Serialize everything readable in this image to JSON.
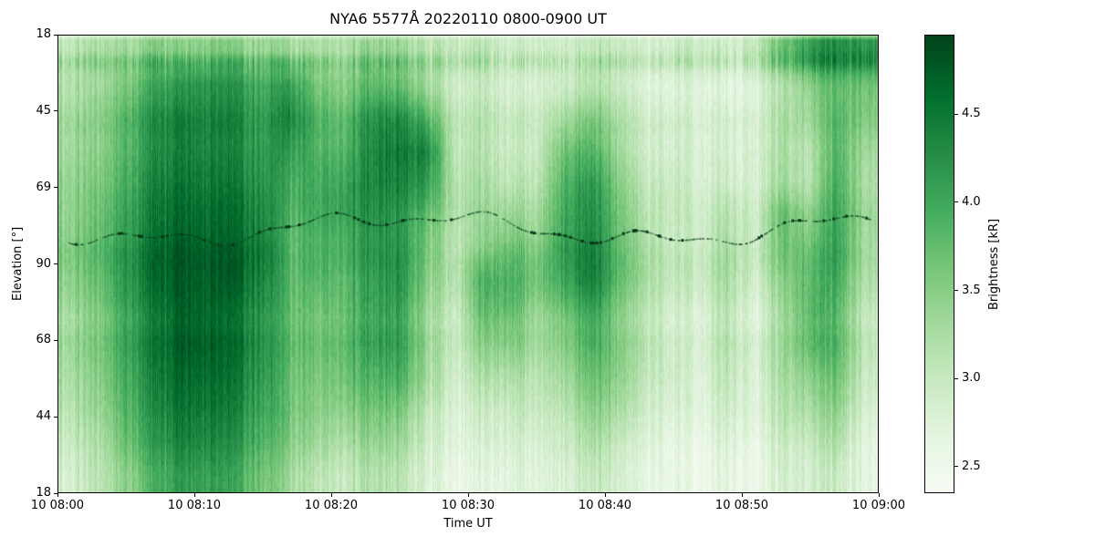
{
  "figure": {
    "background": "#ffffff"
  },
  "colorbar": {
    "label": "Brightness [kR]",
    "ticks": [
      "2.5",
      "3.0",
      "3.5",
      "4.0",
      "4.5"
    ],
    "tick_values": [
      2.5,
      3.0,
      3.5,
      4.0,
      4.5
    ],
    "vmin": 2.35,
    "vmax": 4.95,
    "colormap": {
      "name": "Greens",
      "stops": [
        [
          0.0,
          "#f7fcf5"
        ],
        [
          0.125,
          "#e5f5e0"
        ],
        [
          0.25,
          "#c7e9c0"
        ],
        [
          0.375,
          "#a1d99b"
        ],
        [
          0.5,
          "#74c476"
        ],
        [
          0.625,
          "#41ab5d"
        ],
        [
          0.75,
          "#238b45"
        ],
        [
          0.875,
          "#006d2c"
        ],
        [
          1.0,
          "#00441b"
        ]
      ]
    }
  },
  "chart_data": {
    "type": "heatmap",
    "title": "NYA6 5577Å 20220110 0800-0900 UT",
    "xlabel": "Time UT",
    "ylabel": "Elevation [°]",
    "x_tick_labels": [
      "10 08:00",
      "10 08:10",
      "10 08:20",
      "10 08:30",
      "10 08:40",
      "10 08:50",
      "10 09:00"
    ],
    "y_tick_labels": [
      "18",
      "45",
      "69",
      "90",
      "68",
      "44",
      "18"
    ],
    "value_label": "Brightness [kR]",
    "value_range": [
      2.35,
      4.95
    ],
    "grid": {
      "rows": 14,
      "cols": 30,
      "row_axis": "elevation scan from 18 deg (top) through 90 deg back to 18 deg (bottom)",
      "col_axis": "time from 08:00 UT to 09:00 UT, 2 min per column"
    },
    "values_kR": [
      [
        3.0,
        3.1,
        3.2,
        3.4,
        3.4,
        3.5,
        3.4,
        3.3,
        3.2,
        3.1,
        3.2,
        3.3,
        3.2,
        3.0,
        2.9,
        3.0,
        2.9,
        2.8,
        2.9,
        3.0,
        2.9,
        2.8,
        2.8,
        2.9,
        2.8,
        3.0,
        3.6,
        3.9,
        4.2,
        4.0
      ],
      [
        3.2,
        3.3,
        3.6,
        4.0,
        4.2,
        4.3,
        4.2,
        4.0,
        4.1,
        3.6,
        3.6,
        3.8,
        3.7,
        3.3,
        2.9,
        3.0,
        2.9,
        2.8,
        3.0,
        3.2,
        3.0,
        2.8,
        2.7,
        2.8,
        2.7,
        2.8,
        3.2,
        3.4,
        3.8,
        3.6
      ],
      [
        3.3,
        3.4,
        3.8,
        4.2,
        4.4,
        4.4,
        4.3,
        4.1,
        4.3,
        3.8,
        3.8,
        4.2,
        4.2,
        3.8,
        3.0,
        3.1,
        3.0,
        2.9,
        3.3,
        3.6,
        3.2,
        2.9,
        2.8,
        2.8,
        2.8,
        2.8,
        3.2,
        3.2,
        3.8,
        3.4
      ],
      [
        3.4,
        3.5,
        3.9,
        4.3,
        4.5,
        4.5,
        4.4,
        4.2,
        4.2,
        3.9,
        4.0,
        4.4,
        4.5,
        4.4,
        3.1,
        3.2,
        3.1,
        3.0,
        3.8,
        4.0,
        3.4,
        3.0,
        2.9,
        2.9,
        2.9,
        2.9,
        3.3,
        3.1,
        3.9,
        3.3
      ],
      [
        3.5,
        3.6,
        4.0,
        4.4,
        4.6,
        4.6,
        4.5,
        4.3,
        4.0,
        4.0,
        4.2,
        4.4,
        4.4,
        4.2,
        3.2,
        3.3,
        3.2,
        3.1,
        4.0,
        4.3,
        3.6,
        3.1,
        3.0,
        2.9,
        3.0,
        2.9,
        3.4,
        3.1,
        4.0,
        3.2
      ],
      [
        3.5,
        3.7,
        4.1,
        4.5,
        4.7,
        4.7,
        4.6,
        4.4,
        3.9,
        4.0,
        4.2,
        4.3,
        4.2,
        3.8,
        3.2,
        3.4,
        3.5,
        3.3,
        4.1,
        4.4,
        3.7,
        3.2,
        3.0,
        3.0,
        3.2,
        3.0,
        3.8,
        3.4,
        4.1,
        3.3
      ],
      [
        3.6,
        3.8,
        4.2,
        4.6,
        4.8,
        4.8,
        4.7,
        4.5,
        3.8,
        3.9,
        4.0,
        4.2,
        4.2,
        3.6,
        3.1,
        3.5,
        3.8,
        3.5,
        4.2,
        4.5,
        3.8,
        3.3,
        3.0,
        3.0,
        3.3,
        3.0,
        3.7,
        3.6,
        4.1,
        3.2
      ],
      [
        3.5,
        3.7,
        4.2,
        4.6,
        4.8,
        4.8,
        4.7,
        4.4,
        3.8,
        3.8,
        3.9,
        4.1,
        4.2,
        3.5,
        3.1,
        3.9,
        4.0,
        3.6,
        4.1,
        4.5,
        3.8,
        3.3,
        3.0,
        3.0,
        3.3,
        2.9,
        3.5,
        3.7,
        4.0,
        3.1
      ],
      [
        3.4,
        3.6,
        4.1,
        4.5,
        4.8,
        4.8,
        4.6,
        4.3,
        3.8,
        3.7,
        3.9,
        4.1,
        4.1,
        3.4,
        3.0,
        3.8,
        3.9,
        3.4,
        3.8,
        4.2,
        3.6,
        3.2,
        2.9,
        2.9,
        3.2,
        2.8,
        3.4,
        3.8,
        3.9,
        3.0
      ],
      [
        3.3,
        3.5,
        4.0,
        4.4,
        4.7,
        4.7,
        4.5,
        4.2,
        3.7,
        3.6,
        3.8,
        4.0,
        4.0,
        3.3,
        2.9,
        3.4,
        3.5,
        3.2,
        3.5,
        3.9,
        3.5,
        3.1,
        2.8,
        2.8,
        3.1,
        2.8,
        3.3,
        3.6,
        3.8,
        2.9
      ],
      [
        3.2,
        3.4,
        3.9,
        4.3,
        4.6,
        4.6,
        4.4,
        4.1,
        3.6,
        3.5,
        3.7,
        3.8,
        3.8,
        3.2,
        2.8,
        3.1,
        3.2,
        3.0,
        3.3,
        3.7,
        3.4,
        3.0,
        2.8,
        2.7,
        3.0,
        2.7,
        3.2,
        3.3,
        3.6,
        2.8
      ],
      [
        3.1,
        3.3,
        3.8,
        4.2,
        4.5,
        4.5,
        4.3,
        4.0,
        3.6,
        3.4,
        3.5,
        3.6,
        3.5,
        3.0,
        2.7,
        2.9,
        3.0,
        2.9,
        3.1,
        3.5,
        3.2,
        2.9,
        2.7,
        2.7,
        2.9,
        2.7,
        3.1,
        3.1,
        3.4,
        2.7
      ],
      [
        3.0,
        3.2,
        3.7,
        4.1,
        4.4,
        4.4,
        4.2,
        3.9,
        3.5,
        3.3,
        3.3,
        3.4,
        3.3,
        2.9,
        2.7,
        2.8,
        2.9,
        2.8,
        3.0,
        3.3,
        3.0,
        2.8,
        2.6,
        2.6,
        2.8,
        2.6,
        3.0,
        2.9,
        3.2,
        2.6
      ],
      [
        2.9,
        3.1,
        3.5,
        3.9,
        4.2,
        4.2,
        4.0,
        3.7,
        3.3,
        3.1,
        3.1,
        3.2,
        3.1,
        2.8,
        2.6,
        2.7,
        2.8,
        2.7,
        2.9,
        3.1,
        2.9,
        2.7,
        2.6,
        2.6,
        2.7,
        2.6,
        2.9,
        2.8,
        3.0,
        2.6
      ]
    ],
    "annotations": [
      "faint dark dotted star/moon trail undulating across the 69-90 degree band for the full hour",
      "fine vertical striping from rapid time variations of auroral brightness"
    ]
  }
}
